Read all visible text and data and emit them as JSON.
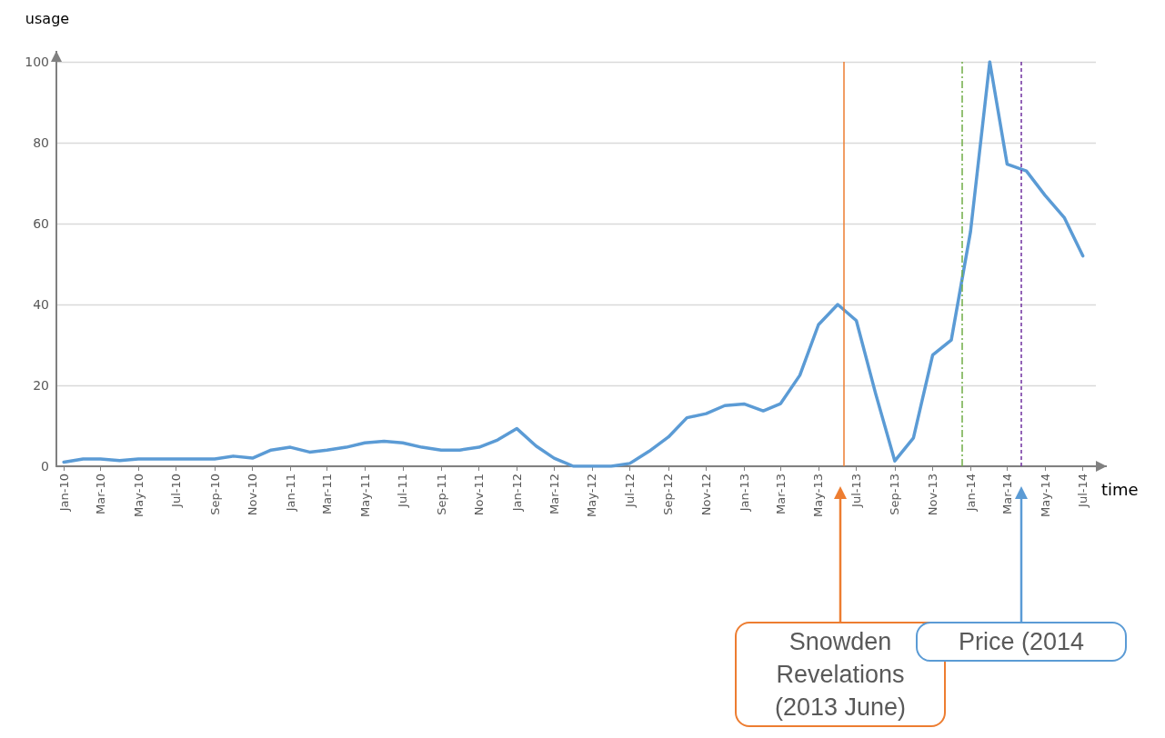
{
  "chart_data": {
    "type": "line",
    "xlabel": "time",
    "ylabel": "usage",
    "x": [
      "2010-01",
      "2010-02",
      "2010-03",
      "2010-04",
      "2010-05",
      "2010-06",
      "2010-07",
      "2010-08",
      "2010-09",
      "2010-10",
      "2010-11",
      "2010-12",
      "2011-01",
      "2011-02",
      "2011-03",
      "2011-04",
      "2011-05",
      "2011-06",
      "2011-07",
      "2011-08",
      "2011-09",
      "2011-10",
      "2011-11",
      "2011-12",
      "2012-01",
      "2012-02",
      "2012-03",
      "2012-04",
      "2012-05",
      "2012-06",
      "2012-07",
      "2012-08",
      "2012-09",
      "2012-10",
      "2012-11",
      "2012-12",
      "2013-01",
      "2013-02",
      "2013-03",
      "2013-04",
      "2013-05",
      "2013-06",
      "2013-07",
      "2013-08",
      "2013-09",
      "2013-10",
      "2013-11",
      "2013-12",
      "2014-01",
      "2014-02",
      "2014-03",
      "2014-04",
      "2014-05",
      "2014-06",
      "2014-07"
    ],
    "series": [
      {
        "color": "#5b9bd5",
        "values": [
          1,
          1.8,
          1.8,
          1.4,
          1.8,
          1.8,
          1.8,
          1.8,
          1.8,
          2.5,
          2,
          4,
          4.7,
          3.5,
          4,
          4.7,
          5.8,
          6.2,
          5.8,
          4.7,
          4,
          4,
          4.7,
          6.5,
          9.3,
          5,
          2,
          0,
          0,
          0,
          0.7,
          3.7,
          7.2,
          12,
          13,
          15,
          15.4,
          13.7,
          15.5,
          22.5,
          35,
          40,
          36,
          18,
          1.3,
          7,
          27.5,
          31.2,
          58,
          100,
          74.7,
          73,
          67,
          61.5,
          52
        ]
      }
    ],
    "xlim": [
      "2009-12-20",
      "2014-07-22"
    ],
    "xticks": [
      {
        "value": "2010-01",
        "label": "Jan-10"
      },
      {
        "value": "2010-03",
        "label": "Mar-10"
      },
      {
        "value": "2010-05",
        "label": "May-10"
      },
      {
        "value": "2010-07",
        "label": "Jul-10"
      },
      {
        "value": "2010-09",
        "label": "Sep-10"
      },
      {
        "value": "2010-11",
        "label": "Nov-10"
      },
      {
        "value": "2011-01",
        "label": "Jan-11"
      },
      {
        "value": "2011-03",
        "label": "Mar-11"
      },
      {
        "value": "2011-05",
        "label": "May-11"
      },
      {
        "value": "2011-07",
        "label": "Jul-11"
      },
      {
        "value": "2011-09",
        "label": "Sep-11"
      },
      {
        "value": "2011-11",
        "label": "Nov-11"
      },
      {
        "value": "2012-01",
        "label": "Jan-12"
      },
      {
        "value": "2012-03",
        "label": "Mar-12"
      },
      {
        "value": "2012-05",
        "label": "May-12"
      },
      {
        "value": "2012-07",
        "label": "Jul-12"
      },
      {
        "value": "2012-09",
        "label": "Sep-12"
      },
      {
        "value": "2012-11",
        "label": "Nov-12"
      },
      {
        "value": "2013-01",
        "label": "Jan-13"
      },
      {
        "value": "2013-03",
        "label": "Mar-13"
      },
      {
        "value": "2013-05",
        "label": "May-13"
      },
      {
        "value": "2013-07",
        "label": "Jul-13"
      },
      {
        "value": "2013-09",
        "label": "Sep-13"
      },
      {
        "value": "2013-11",
        "label": "Nov-13"
      },
      {
        "value": "2014-01",
        "label": "Jan-14"
      },
      {
        "value": "2014-03",
        "label": "Mar-14"
      },
      {
        "value": "2014-05",
        "label": "May-14"
      },
      {
        "value": "2014-07",
        "label": "Jul-14"
      }
    ],
    "ylim": [
      0,
      100
    ],
    "yticks": [
      0,
      20,
      40,
      60,
      80,
      100
    ],
    "grid": "y",
    "marker": "none",
    "line_style": "solid",
    "ref_lines": [
      {
        "axis": "x",
        "value": "2013-06-10",
        "color": "#ed7d31",
        "line_style": "solid"
      },
      {
        "axis": "x",
        "value": "2013-12-18",
        "color": "#70ad47",
        "line_style": "dashed"
      },
      {
        "axis": "x",
        "value": "2014-03-23",
        "color": "#7030a0",
        "line_style": "dotted"
      }
    ],
    "annotations": [
      "Snowden Revelations (2013 June)",
      "Price (2014"
    ]
  }
}
